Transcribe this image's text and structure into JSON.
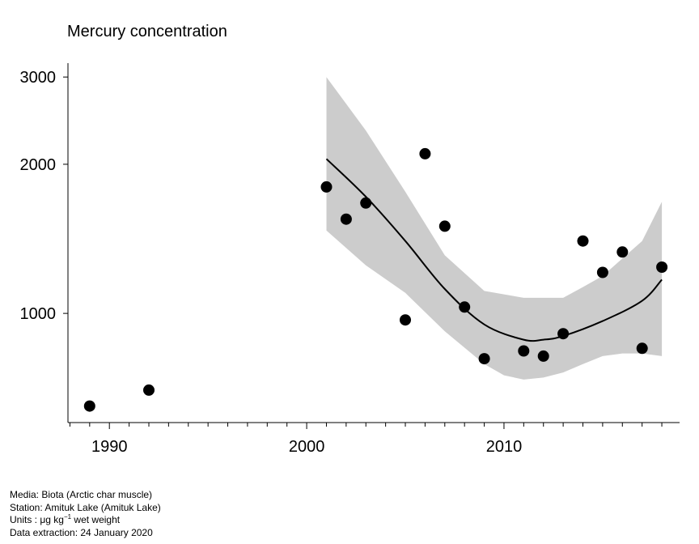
{
  "chart_data": {
    "type": "scatter",
    "title": "Mercury concentration",
    "y_scale": "log",
    "xlim": [
      1987.9,
      2018.9
    ],
    "ylim": [
      602,
      3200
    ],
    "x_ticks_major": [
      1990,
      2000,
      2010
    ],
    "x_ticks_minor_start": 1988,
    "x_ticks_minor_end": 2018,
    "y_ticks": [
      1000,
      2000,
      3000
    ],
    "series": [
      {
        "type": "scatter",
        "color": "#000000",
        "points": [
          {
            "x": 1989,
            "y": 650
          },
          {
            "x": 1992,
            "y": 700
          },
          {
            "x": 2001,
            "y": 1800
          },
          {
            "x": 2002,
            "y": 1550
          },
          {
            "x": 2003,
            "y": 1670
          },
          {
            "x": 2005,
            "y": 970
          },
          {
            "x": 2006,
            "y": 2100
          },
          {
            "x": 2007,
            "y": 1500
          },
          {
            "x": 2008,
            "y": 1030
          },
          {
            "x": 2009,
            "y": 810
          },
          {
            "x": 2011,
            "y": 840
          },
          {
            "x": 2012,
            "y": 820
          },
          {
            "x": 2013,
            "y": 910
          },
          {
            "x": 2014,
            "y": 1400
          },
          {
            "x": 2015,
            "y": 1210
          },
          {
            "x": 2016,
            "y": 1330
          },
          {
            "x": 2017,
            "y": 850
          },
          {
            "x": 2018,
            "y": 1240
          }
        ]
      },
      {
        "type": "line",
        "color": "#000000",
        "points": [
          {
            "x": 2001,
            "y": 2050
          },
          {
            "x": 2003,
            "y": 1720
          },
          {
            "x": 2005,
            "y": 1400
          },
          {
            "x": 2007,
            "y": 1120
          },
          {
            "x": 2009,
            "y": 950
          },
          {
            "x": 2011,
            "y": 885
          },
          {
            "x": 2012,
            "y": 885
          },
          {
            "x": 2013,
            "y": 900
          },
          {
            "x": 2015,
            "y": 965
          },
          {
            "x": 2017,
            "y": 1060
          },
          {
            "x": 2018,
            "y": 1170
          }
        ]
      },
      {
        "type": "band",
        "color": "#cccccc",
        "upper": [
          {
            "x": 2001,
            "y": 3000
          },
          {
            "x": 2003,
            "y": 2340
          },
          {
            "x": 2005,
            "y": 1760
          },
          {
            "x": 2007,
            "y": 1310
          },
          {
            "x": 2009,
            "y": 1110
          },
          {
            "x": 2011,
            "y": 1075
          },
          {
            "x": 2013,
            "y": 1075
          },
          {
            "x": 2014,
            "y": 1130
          },
          {
            "x": 2015,
            "y": 1190
          },
          {
            "x": 2017,
            "y": 1400
          },
          {
            "x": 2018,
            "y": 1680
          }
        ],
        "lower": [
          {
            "x": 2001,
            "y": 1470
          },
          {
            "x": 2003,
            "y": 1250
          },
          {
            "x": 2005,
            "y": 1100
          },
          {
            "x": 2007,
            "y": 920
          },
          {
            "x": 2009,
            "y": 790
          },
          {
            "x": 2010,
            "y": 750
          },
          {
            "x": 2011,
            "y": 735
          },
          {
            "x": 2012,
            "y": 742
          },
          {
            "x": 2013,
            "y": 760
          },
          {
            "x": 2014,
            "y": 790
          },
          {
            "x": 2015,
            "y": 820
          },
          {
            "x": 2016,
            "y": 830
          },
          {
            "x": 2017,
            "y": 830
          },
          {
            "x": 2018,
            "y": 820
          }
        ]
      }
    ]
  },
  "footer": {
    "media": "Media: Biota (Arctic char muscle)",
    "station": "Station: Amituk Lake (Amituk Lake)",
    "units_prefix": "Units : μg kg",
    "units_sup": "−1",
    "units_suffix": " wet weight",
    "extraction": "Data extraction: 24 January 2020"
  }
}
